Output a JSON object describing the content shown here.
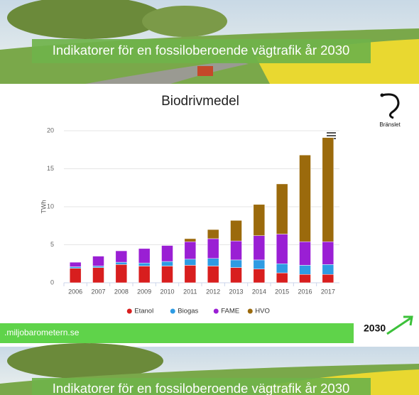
{
  "banner": {
    "title": "Indikatorer för en fossiloberoende vägtrafik år 2030"
  },
  "icon_label": "Bränslet",
  "footer": {
    "url": ".miljobarometern.se",
    "logo": "2030"
  },
  "chart_data": {
    "type": "stacked_bar",
    "title": "Biodrivmedel",
    "y_label": "TWh",
    "categories": [
      "2006",
      "2007",
      "2008",
      "2009",
      "2010",
      "2011",
      "2012",
      "2013",
      "2014",
      "2015",
      "2016",
      "2017"
    ],
    "series": [
      {
        "name": "Etanol",
        "color": "#d81e1e",
        "values": [
          1.9,
          2.0,
          2.4,
          2.2,
          2.2,
          2.3,
          2.2,
          2.0,
          1.8,
          1.3,
          1.1,
          1.1
        ]
      },
      {
        "name": "Biogas",
        "color": "#2e9be3",
        "values": [
          0.2,
          0.2,
          0.3,
          0.4,
          0.6,
          0.8,
          1.0,
          1.0,
          1.2,
          1.2,
          1.2,
          1.3
        ]
      },
      {
        "name": "FAME",
        "color": "#9a1fd4",
        "values": [
          0.6,
          1.3,
          1.5,
          1.9,
          2.1,
          2.3,
          2.6,
          2.5,
          3.2,
          3.9,
          3.1,
          3.0
        ]
      },
      {
        "name": "HVO",
        "color": "#9b6a0c",
        "values": [
          0,
          0,
          0,
          0,
          0,
          0.4,
          1.2,
          2.7,
          4.1,
          6.6,
          11.4,
          13.7
        ]
      }
    ],
    "ylim": [
      0,
      20
    ],
    "yticks": [
      0,
      5,
      10,
      15,
      20
    ],
    "grid": true,
    "legend": "bottom"
  }
}
